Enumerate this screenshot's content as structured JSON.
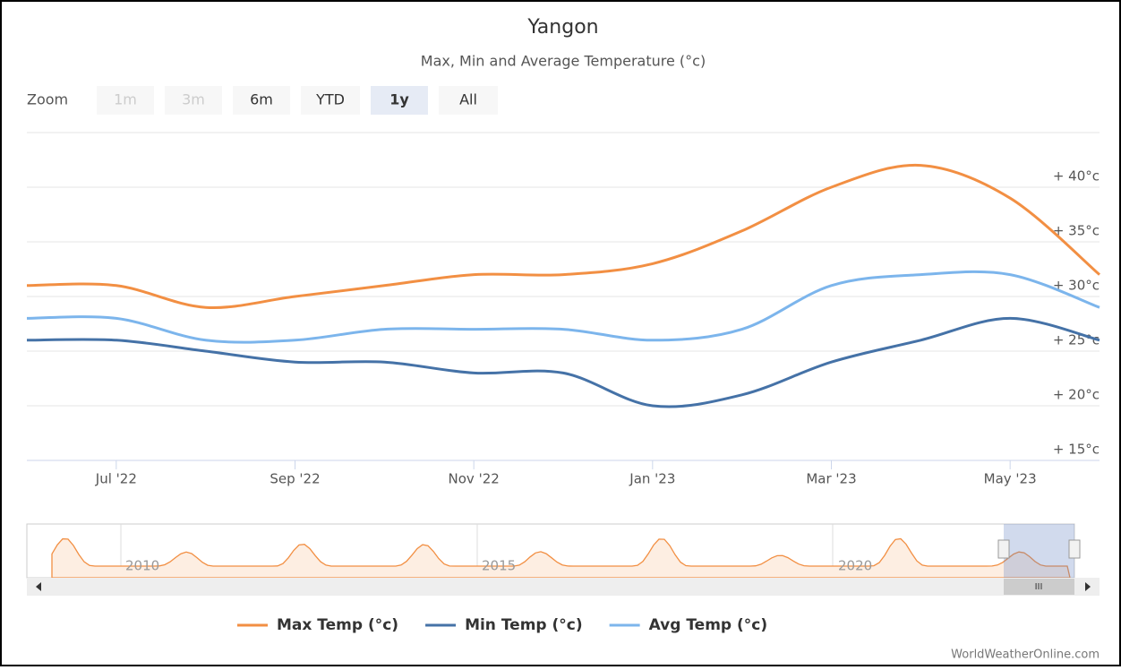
{
  "chart_data": {
    "type": "line",
    "title": "Yangon",
    "subtitle": "Max, Min and Average Temperature (°c)",
    "zoom": {
      "label": "Zoom",
      "buttons": [
        "1m",
        "3m",
        "6m",
        "YTD",
        "1y",
        "All"
      ],
      "selected": "1y",
      "disabled": [
        "1m",
        "3m"
      ]
    },
    "x": [
      "2022-06",
      "2022-07",
      "2022-08",
      "2022-09",
      "2022-10",
      "2022-11",
      "2022-12",
      "2023-01",
      "2023-02",
      "2023-03",
      "2023-04",
      "2023-05",
      "2023-06"
    ],
    "xticks": [
      {
        "value": "2022-07",
        "label": "Jul '22"
      },
      {
        "value": "2022-09",
        "label": "Sep '22"
      },
      {
        "value": "2022-11",
        "label": "Nov '22"
      },
      {
        "value": "2023-01",
        "label": "Jan '23"
      },
      {
        "value": "2023-03",
        "label": "Mar '23"
      },
      {
        "value": "2023-05",
        "label": "May '23"
      }
    ],
    "ylim": [
      15,
      45
    ],
    "yticks": [
      {
        "value": 15,
        "label": "+ 15°c"
      },
      {
        "value": 20,
        "label": "+ 20°c"
      },
      {
        "value": 25,
        "label": "+ 25°c"
      },
      {
        "value": 30,
        "label": "+ 30°c"
      },
      {
        "value": 35,
        "label": "+ 35°c"
      },
      {
        "value": 40,
        "label": "+ 40°c"
      }
    ],
    "grid": true,
    "series": [
      {
        "name": "Max Temp (°c)",
        "color": "#f28f43",
        "values": [
          31,
          31,
          29,
          30,
          31,
          32,
          32,
          33,
          36,
          40,
          42,
          39,
          32
        ]
      },
      {
        "name": "Min Temp (°c)",
        "color": "#4572a7",
        "values": [
          26,
          26,
          25,
          24,
          24,
          23,
          23,
          20,
          21,
          24,
          26,
          28,
          26
        ]
      },
      {
        "name": "Avg Temp (°c)",
        "color": "#7cb5ec",
        "values": [
          28,
          28,
          26,
          26,
          27,
          27,
          27,
          26,
          27,
          31,
          32,
          32,
          29
        ]
      }
    ],
    "navigator_labels": [
      "2010",
      "2015",
      "2020"
    ],
    "credit": "WorldWeatherOnline.com"
  }
}
